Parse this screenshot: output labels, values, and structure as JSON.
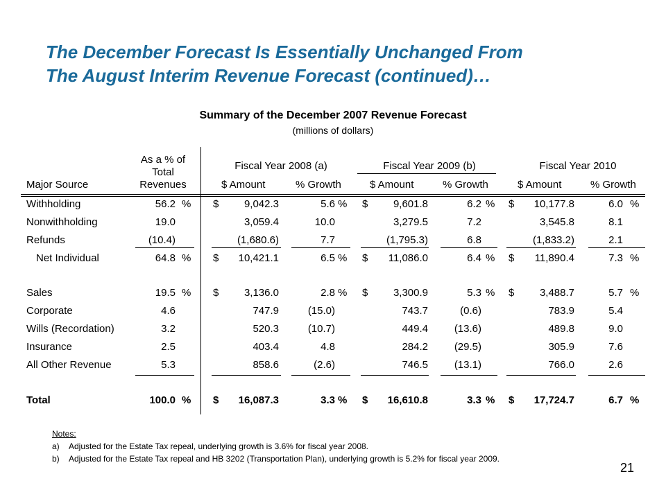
{
  "title": {
    "line1": "The December Forecast Is Essentially Unchanged From",
    "line2": "The August Interim Revenue Forecast (continued)…"
  },
  "subtitle": "Summary of the December 2007 Revenue Forecast",
  "units": "(millions of dollars)",
  "header": {
    "major_source": "Major Source",
    "pct_total": [
      "As a % of",
      "Total",
      "Revenues"
    ],
    "fy2008": "Fiscal Year 2008 (a)",
    "fy2009": "Fiscal Year 2009 (b)",
    "fy2010": "Fiscal Year 2010",
    "amount": "$ Amount",
    "growth": "% Growth"
  },
  "rows": [
    {
      "source": "Withholding",
      "pct": "56.2",
      "pct_mark": "%",
      "fy08_dollar": "$",
      "fy08_amount": "9,042.3",
      "fy08_growth": "5.6",
      "fy08_mark": "%",
      "fy09_dollar": "$",
      "fy09_amount": "9,601.8",
      "fy09_growth": "6.2",
      "fy09_mark": "%",
      "fy10_dollar": "$",
      "fy10_amount": "10,177.8",
      "fy10_growth": "6.0",
      "fy10_mark": "%"
    },
    {
      "source": "Nonwithholding",
      "pct": "19.0",
      "pct_mark": "",
      "fy08_dollar": "",
      "fy08_amount": "3,059.4",
      "fy08_growth": "10.0",
      "fy08_mark": "",
      "fy09_dollar": "",
      "fy09_amount": "3,279.5",
      "fy09_growth": "7.2",
      "fy09_mark": "",
      "fy10_dollar": "",
      "fy10_amount": "3,545.8",
      "fy10_growth": "8.1",
      "fy10_mark": ""
    },
    {
      "source": "Refunds",
      "pct": "(10.4)",
      "pct_mark": "",
      "fy08_dollar": "",
      "fy08_amount": "(1,680.6)",
      "fy08_growth": "7.7",
      "fy08_mark": "",
      "fy09_dollar": "",
      "fy09_amount": "(1,795.3)",
      "fy09_growth": "6.8",
      "fy09_mark": "",
      "fy10_dollar": "",
      "fy10_amount": "(1,833.2)",
      "fy10_growth": "2.1",
      "fy10_mark": ""
    },
    {
      "source": "Net Individual",
      "pct": "64.8",
      "pct_mark": "%",
      "fy08_dollar": "$",
      "fy08_amount": "10,421.1",
      "fy08_growth": "6.5",
      "fy08_mark": "%",
      "fy09_dollar": "$",
      "fy09_amount": "11,086.0",
      "fy09_growth": "6.4",
      "fy09_mark": "%",
      "fy10_dollar": "$",
      "fy10_amount": "11,890.4",
      "fy10_growth": "7.3",
      "fy10_mark": "%"
    },
    {
      "source": "Sales",
      "pct": "19.5",
      "pct_mark": "%",
      "fy08_dollar": "$",
      "fy08_amount": "3,136.0",
      "fy08_growth": "2.8",
      "fy08_mark": "%",
      "fy09_dollar": "$",
      "fy09_amount": "3,300.9",
      "fy09_growth": "5.3",
      "fy09_mark": "%",
      "fy10_dollar": "$",
      "fy10_amount": "3,488.7",
      "fy10_growth": "5.7",
      "fy10_mark": "%"
    },
    {
      "source": "Corporate",
      "pct": "4.6",
      "pct_mark": "",
      "fy08_dollar": "",
      "fy08_amount": "747.9",
      "fy08_growth": "(15.0)",
      "fy08_mark": "",
      "fy09_dollar": "",
      "fy09_amount": "743.7",
      "fy09_growth": "(0.6)",
      "fy09_mark": "",
      "fy10_dollar": "",
      "fy10_amount": "783.9",
      "fy10_growth": "5.4",
      "fy10_mark": ""
    },
    {
      "source": "Wills (Recordation)",
      "pct": "3.2",
      "pct_mark": "",
      "fy08_dollar": "",
      "fy08_amount": "520.3",
      "fy08_growth": "(10.7)",
      "fy08_mark": "",
      "fy09_dollar": "",
      "fy09_amount": "449.4",
      "fy09_growth": "(13.6)",
      "fy09_mark": "",
      "fy10_dollar": "",
      "fy10_amount": "489.8",
      "fy10_growth": "9.0",
      "fy10_mark": ""
    },
    {
      "source": "Insurance",
      "pct": "2.5",
      "pct_mark": "",
      "fy08_dollar": "",
      "fy08_amount": "403.4",
      "fy08_growth": "4.8",
      "fy08_mark": "",
      "fy09_dollar": "",
      "fy09_amount": "284.2",
      "fy09_growth": "(29.5)",
      "fy09_mark": "",
      "fy10_dollar": "",
      "fy10_amount": "305.9",
      "fy10_growth": "7.6",
      "fy10_mark": ""
    },
    {
      "source": "All Other Revenue",
      "pct": "5.3",
      "pct_mark": "",
      "fy08_dollar": "",
      "fy08_amount": "858.6",
      "fy08_growth": "(2.6)",
      "fy08_mark": "",
      "fy09_dollar": "",
      "fy09_amount": "746.5",
      "fy09_growth": "(13.1)",
      "fy09_mark": "",
      "fy10_dollar": "",
      "fy10_amount": "766.0",
      "fy10_growth": "2.6",
      "fy10_mark": ""
    },
    {
      "source": "Total",
      "pct": "100.0",
      "pct_mark": "%",
      "fy08_dollar": "$",
      "fy08_amount": "16,087.3",
      "fy08_growth": "3.3",
      "fy08_mark": "%",
      "fy09_dollar": "$",
      "fy09_amount": "16,610.8",
      "fy09_growth": "3.3",
      "fy09_mark": "%",
      "fy10_dollar": "$",
      "fy10_amount": "17,724.7",
      "fy10_growth": "6.7",
      "fy10_mark": "%"
    }
  ],
  "notes": {
    "heading": "Notes:",
    "items": [
      {
        "label": "a)",
        "text": "Adjusted for the Estate Tax repeal, underlying growth is 3.6% for fiscal year 2008."
      },
      {
        "label": "b)",
        "text": "Adjusted for the Estate Tax repeal and HB 3202 (Transportation Plan), underlying growth is 5.2% for fiscal year 2009."
      }
    ]
  },
  "page_number": "21",
  "colors": {
    "title": "#1a6a9a"
  }
}
